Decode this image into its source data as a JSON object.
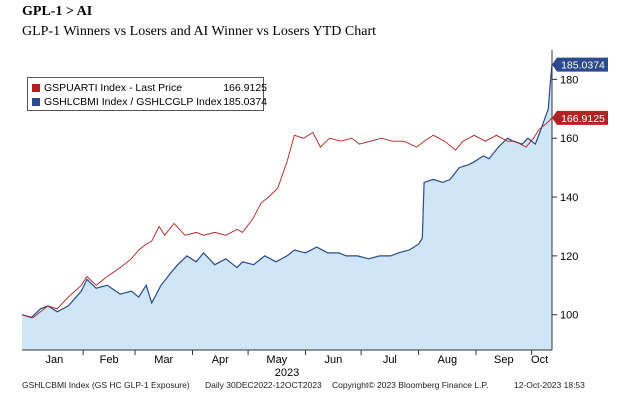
{
  "header": {
    "title": "GPL-1 > AI",
    "subtitle": "GLP-1 Winners vs Losers and AI Winner vs Losers YTD Chart"
  },
  "footer": {
    "source": "GSHLCBMI Index (GS HC GLP-1 Exposure)",
    "range": "Daily 30DEC2022-12OCT2023",
    "copyright": "Copyright© 2023 Bloomberg Finance L.P.",
    "date": "12-Oct-2023 18:53"
  },
  "chart_data": {
    "type": "line",
    "xlabel": "2023",
    "months": [
      "Jan",
      "Feb",
      "Mar",
      "Apr",
      "May",
      "Jun",
      "Jul",
      "Aug",
      "Sep",
      "Oct"
    ],
    "year_label": "2023",
    "x_range": [
      "2022-12-30",
      "2023-10-12"
    ],
    "ylim": [
      88,
      190
    ],
    "yticks": [
      100,
      120,
      140,
      160,
      180
    ],
    "grid": false,
    "legend_position": "top-left",
    "series": [
      {
        "name": "GSPUARTI Index - Last Price",
        "last_value": "166.9125",
        "color": "#b22222",
        "style": "line",
        "points": [
          [
            "2022-12-30",
            100
          ],
          [
            "2023-01-05",
            99
          ],
          [
            "2023-01-09",
            101
          ],
          [
            "2023-01-13",
            103
          ],
          [
            "2023-01-18",
            102
          ],
          [
            "2023-01-24",
            106
          ],
          [
            "2023-01-31",
            110
          ],
          [
            "2023-02-03",
            113
          ],
          [
            "2023-02-08",
            110
          ],
          [
            "2023-02-14",
            113
          ],
          [
            "2023-02-21",
            116
          ],
          [
            "2023-02-27",
            119
          ],
          [
            "2023-03-03",
            122
          ],
          [
            "2023-03-07",
            124
          ],
          [
            "2023-03-10",
            125
          ],
          [
            "2023-03-14",
            130
          ],
          [
            "2023-03-17",
            127
          ],
          [
            "2023-03-22",
            131
          ],
          [
            "2023-03-28",
            127
          ],
          [
            "2023-04-03",
            128
          ],
          [
            "2023-04-07",
            127
          ],
          [
            "2023-04-13",
            128
          ],
          [
            "2023-04-19",
            127
          ],
          [
            "2023-04-25",
            129
          ],
          [
            "2023-04-28",
            128
          ],
          [
            "2023-05-04",
            133
          ],
          [
            "2023-05-08",
            138
          ],
          [
            "2023-05-12",
            140
          ],
          [
            "2023-05-17",
            143
          ],
          [
            "2023-05-22",
            152
          ],
          [
            "2023-05-26",
            161
          ],
          [
            "2023-05-31",
            160
          ],
          [
            "2023-06-05",
            162
          ],
          [
            "2023-06-09",
            157
          ],
          [
            "2023-06-14",
            160
          ],
          [
            "2023-06-20",
            159
          ],
          [
            "2023-06-26",
            160
          ],
          [
            "2023-06-30",
            158
          ],
          [
            "2023-07-06",
            159
          ],
          [
            "2023-07-12",
            160
          ],
          [
            "2023-07-18",
            159
          ],
          [
            "2023-07-24",
            159
          ],
          [
            "2023-07-31",
            157
          ],
          [
            "2023-08-04",
            159
          ],
          [
            "2023-08-09",
            161
          ],
          [
            "2023-08-15",
            159
          ],
          [
            "2023-08-21",
            156
          ],
          [
            "2023-08-25",
            159
          ],
          [
            "2023-08-31",
            161
          ],
          [
            "2023-09-06",
            159
          ],
          [
            "2023-09-12",
            161
          ],
          [
            "2023-09-18",
            159
          ],
          [
            "2023-09-22",
            159
          ],
          [
            "2023-09-28",
            157
          ],
          [
            "2023-10-02",
            160
          ],
          [
            "2023-10-05",
            163
          ],
          [
            "2023-10-09",
            165
          ],
          [
            "2023-10-12",
            166.9125
          ]
        ]
      },
      {
        "name": "GSHLCBMI Index / GSHLCGLP Index",
        "last_value": "185.0374",
        "color": "#2b4a8b",
        "fill": "#cfe6f8",
        "style": "area",
        "points": [
          [
            "2022-12-30",
            100
          ],
          [
            "2023-01-04",
            99
          ],
          [
            "2023-01-09",
            102
          ],
          [
            "2023-01-13",
            103
          ],
          [
            "2023-01-18",
            101
          ],
          [
            "2023-01-24",
            103
          ],
          [
            "2023-01-31",
            108
          ],
          [
            "2023-02-03",
            112
          ],
          [
            "2023-02-08",
            109
          ],
          [
            "2023-02-14",
            110
          ],
          [
            "2023-02-21",
            107
          ],
          [
            "2023-02-27",
            108
          ],
          [
            "2023-03-03",
            106
          ],
          [
            "2023-03-07",
            110
          ],
          [
            "2023-03-10",
            104
          ],
          [
            "2023-03-15",
            110
          ],
          [
            "2023-03-20",
            114
          ],
          [
            "2023-03-24",
            117
          ],
          [
            "2023-03-29",
            120
          ],
          [
            "2023-04-03",
            118
          ],
          [
            "2023-04-07",
            121
          ],
          [
            "2023-04-13",
            117
          ],
          [
            "2023-04-19",
            119
          ],
          [
            "2023-04-25",
            116
          ],
          [
            "2023-04-28",
            118
          ],
          [
            "2023-05-04",
            117
          ],
          [
            "2023-05-10",
            120
          ],
          [
            "2023-05-16",
            118
          ],
          [
            "2023-05-22",
            120
          ],
          [
            "2023-05-26",
            122
          ],
          [
            "2023-06-01",
            121
          ],
          [
            "2023-06-07",
            123
          ],
          [
            "2023-06-13",
            121
          ],
          [
            "2023-06-19",
            121
          ],
          [
            "2023-06-23",
            120
          ],
          [
            "2023-06-29",
            120
          ],
          [
            "2023-07-05",
            119
          ],
          [
            "2023-07-11",
            120
          ],
          [
            "2023-07-17",
            120
          ],
          [
            "2023-07-21",
            121
          ],
          [
            "2023-07-27",
            122
          ],
          [
            "2023-08-01",
            124
          ],
          [
            "2023-08-03",
            126
          ],
          [
            "2023-08-04",
            145
          ],
          [
            "2023-08-09",
            146
          ],
          [
            "2023-08-14",
            145
          ],
          [
            "2023-08-18",
            146
          ],
          [
            "2023-08-23",
            150
          ],
          [
            "2023-08-28",
            151
          ],
          [
            "2023-08-31",
            152
          ],
          [
            "2023-09-05",
            154
          ],
          [
            "2023-09-08",
            153
          ],
          [
            "2023-09-13",
            157
          ],
          [
            "2023-09-18",
            160
          ],
          [
            "2023-09-21",
            159
          ],
          [
            "2023-09-26",
            158
          ],
          [
            "2023-09-29",
            160
          ],
          [
            "2023-10-03",
            158
          ],
          [
            "2023-10-06",
            163
          ],
          [
            "2023-10-10",
            170
          ],
          [
            "2023-10-11",
            178
          ],
          [
            "2023-10-12",
            185.0374
          ]
        ]
      }
    ]
  }
}
